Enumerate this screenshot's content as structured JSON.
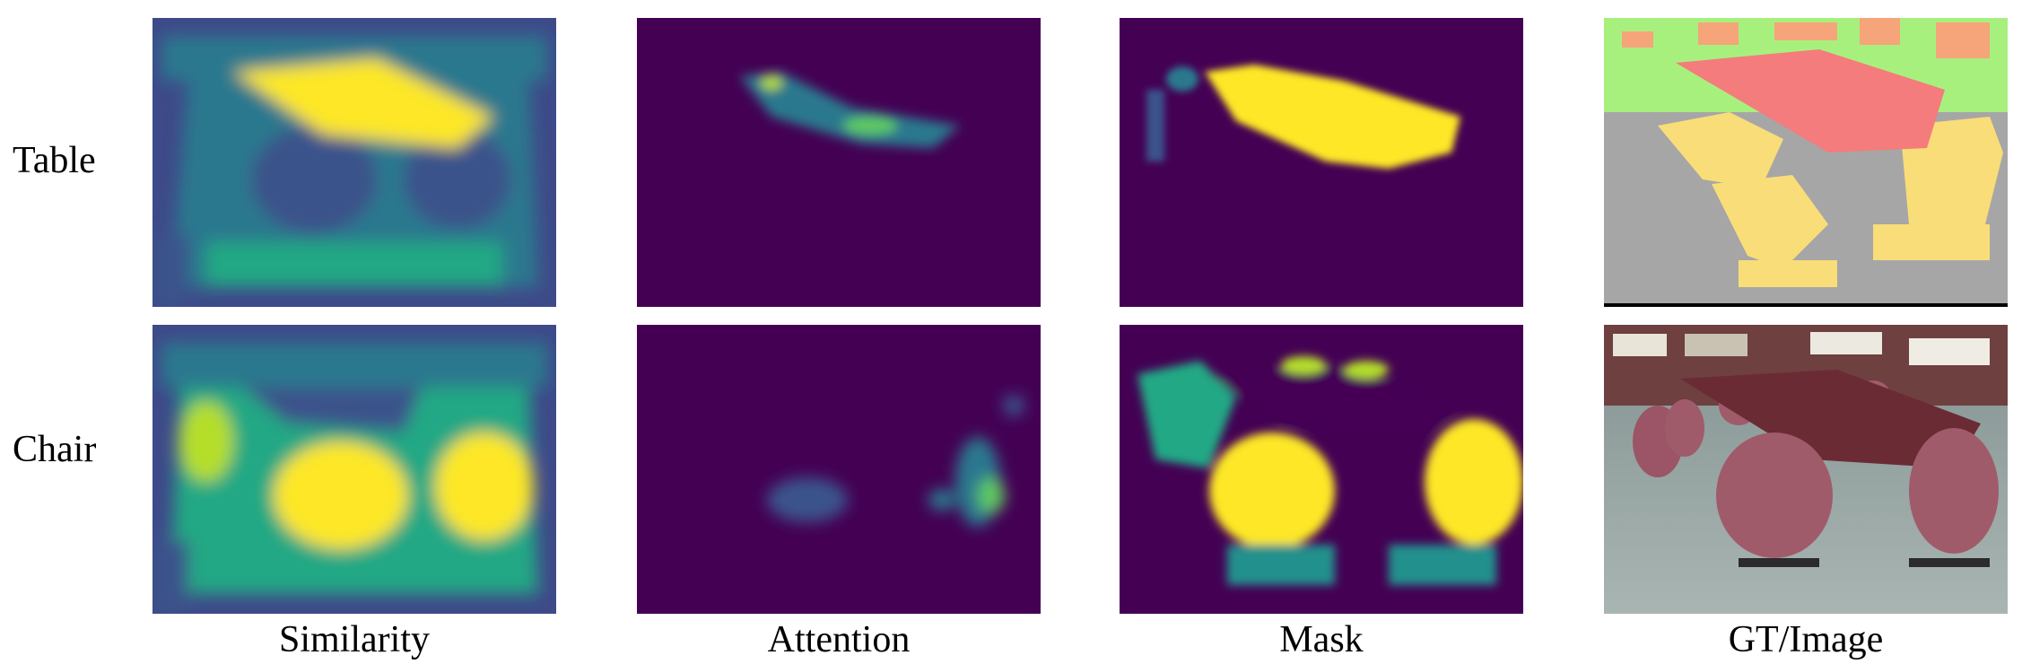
{
  "rows": [
    {
      "label": "Table"
    },
    {
      "label": "Chair"
    }
  ],
  "columns": [
    {
      "label": "Similarity"
    },
    {
      "label": "Attention"
    },
    {
      "label": "Mask"
    },
    {
      "label": "GT/Image"
    }
  ],
  "colors": {
    "viridis_dark": "#440154",
    "viridis_blue": "#3b528b",
    "viridis_teal": "#21908c",
    "viridis_green": "#5ec962",
    "viridis_yellow": "#fde725",
    "gt_table": "#f47c7c",
    "gt_chair": "#f9dd79",
    "gt_floor": "#a6a6a6",
    "gt_wall": "#a8f07e",
    "gt_shelf": "#f6a47a",
    "photo_wall": "#d9d4cc",
    "photo_floor": "#9aa8a6",
    "photo_chair": "#a05b6a",
    "photo_table": "#6b2b35"
  }
}
